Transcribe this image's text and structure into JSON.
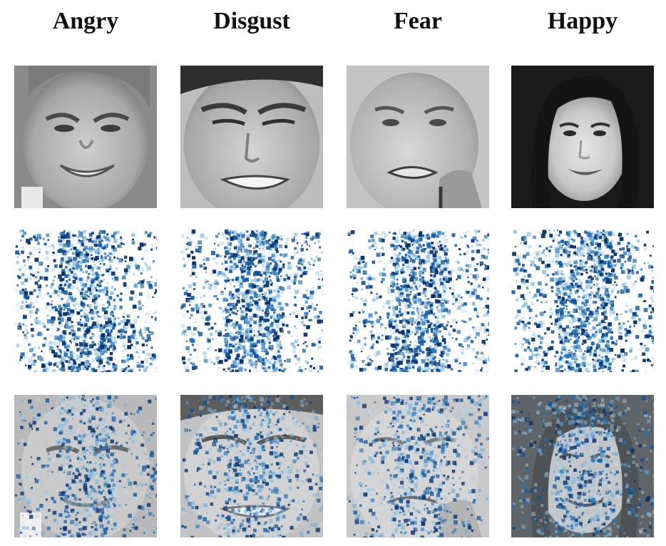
{
  "columns": [
    {
      "label": "Angry"
    },
    {
      "label": "Disgust"
    },
    {
      "label": "Fear"
    },
    {
      "label": "Happy"
    }
  ],
  "rows": [
    "face-photo",
    "saliency-map",
    "overlay"
  ],
  "colors": {
    "background": "#ffffff",
    "title": "#111111",
    "saliency_dark": "#08306b",
    "saliency_mid": "#2171b5",
    "saliency_light": "#c6dbef"
  }
}
